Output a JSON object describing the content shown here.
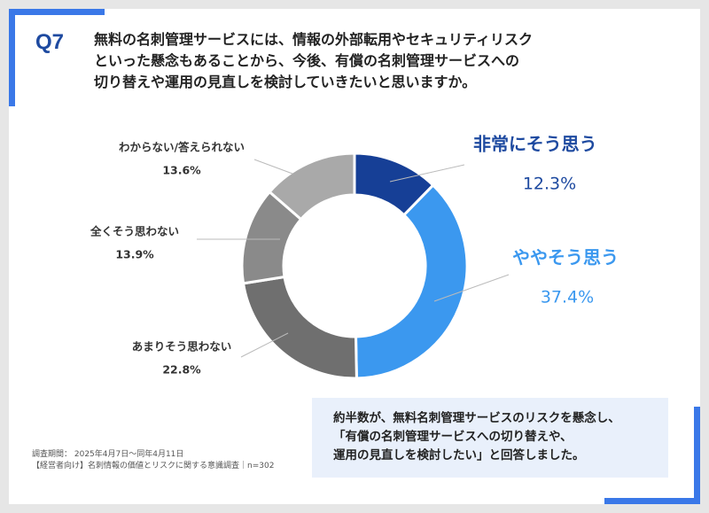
{
  "question": {
    "number": "Q7",
    "lines": [
      "無料の名刺管理サービスには、情報の外部転用やセキュリティリスク",
      "といった懸念もあることから、今後、有償の名刺管理サービスへの",
      "切り替えや運用の見直しを検討していきたいと思いますか。"
    ]
  },
  "chart_data": {
    "type": "pie",
    "style": "donut",
    "unit": "%",
    "slices": [
      {
        "label": "非常にそう思う",
        "value": 12.3,
        "color": "#163f96",
        "value_text": "12.3%"
      },
      {
        "label": "ややそう思う",
        "value": 37.4,
        "color": "#3b98ef",
        "value_text": "37.4%"
      },
      {
        "label": "あまりそう思わない",
        "value": 22.8,
        "color": "#6f6f6f",
        "value_text": "22.8%"
      },
      {
        "label": "全くそう思わない",
        "value": 13.9,
        "color": "#8a8a8a",
        "value_text": "13.9%"
      },
      {
        "label": "わからない/答えられない",
        "value": 13.6,
        "color": "#a9a9a9",
        "value_text": "13.6%"
      }
    ]
  },
  "footnote": {
    "line1": "調査期間： 2025年4月7日〜同年4月11日",
    "line2": "【経営者向け】名刺情報の価値とリスクに関する意識調査｜n=302"
  },
  "summary": {
    "lines": [
      "約半数が、無料名刺管理サービスのリスクを懸念し、",
      "「有償の名刺管理サービスへの切り替えや、",
      "運用の見直しを検討したい」と回答しました。"
    ]
  },
  "colors": {
    "accent": "#3a78e8",
    "title": "#1e4aa0",
    "label_dark_blue": "#1e4aa0",
    "label_light_blue": "#3b98ef",
    "label_gray": "#333333"
  }
}
